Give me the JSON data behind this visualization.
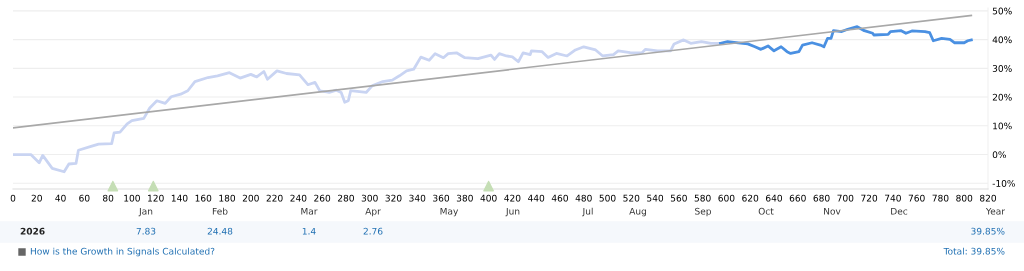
{
  "chart_data": {
    "type": "line",
    "xlim": [
      0,
      820
    ],
    "xticks": [
      0,
      20,
      40,
      60,
      80,
      100,
      120,
      140,
      160,
      180,
      200,
      220,
      240,
      260,
      280,
      300,
      320,
      340,
      360,
      380,
      400,
      420,
      440,
      460,
      480,
      500,
      520,
      540,
      560,
      580,
      600,
      620,
      640,
      660,
      680,
      700,
      720,
      740,
      760,
      780,
      800,
      820
    ],
    "ylim": [
      -12,
      51
    ],
    "yticks": [
      {
        "value": -10,
        "label": "-10%"
      },
      {
        "value": 0,
        "label": "0%"
      },
      {
        "value": 10,
        "label": "10%"
      },
      {
        "value": 20,
        "label": "20%"
      },
      {
        "value": 30,
        "label": "30%"
      },
      {
        "value": 40,
        "label": "40%"
      },
      {
        "value": 50,
        "label": "50%"
      }
    ],
    "grid": "y",
    "legend": false,
    "series": [
      {
        "color": "#c9d4f2",
        "x": [
          0,
          15,
          22,
          25,
          33,
          43,
          47,
          53,
          55,
          67,
          72,
          83,
          85,
          90,
          96,
          100,
          110,
          115,
          121,
          128,
          133,
          141,
          147,
          153,
          164,
          172,
          182,
          191,
          200,
          205,
          211,
          214,
          222,
          230,
          241,
          248,
          254,
          258,
          266,
          272,
          276,
          279,
          282,
          284,
          297,
          302,
          311,
          319,
          325,
          331,
          337,
          343,
          350,
          355,
          362,
          366,
          373,
          380,
          391,
          402,
          405,
          409,
          415,
          420,
          425,
          429,
          435,
          436,
          445,
          450,
          457,
          466,
          473,
          480,
          490,
          496,
          505,
          509,
          519,
          529,
          532,
          542,
          553,
          556,
          564,
          570,
          579,
          587,
          595
        ],
        "values": [
          0,
          0,
          -2.9,
          -0.3,
          -4.8,
          -6.0,
          -3.3,
          -3.1,
          1.5,
          3.0,
          3.6,
          3.8,
          7.5,
          7.8,
          10.7,
          11.8,
          12.6,
          16.2,
          18.7,
          17.8,
          20.1,
          21.0,
          22.2,
          25.4,
          26.8,
          27.4,
          28.5,
          26.6,
          27.9,
          27.0,
          28.9,
          26.2,
          29.1,
          28.2,
          27.7,
          24.3,
          25.1,
          22.2,
          21.6,
          22.4,
          21.6,
          18.2,
          18.7,
          22.2,
          21.6,
          23.9,
          25.4,
          25.9,
          27.4,
          29.1,
          29.7,
          33.9,
          32.8,
          35.1,
          33.7,
          35.1,
          35.4,
          33.7,
          33.4,
          34.6,
          33.1,
          35.1,
          34.3,
          34.0,
          32.3,
          35.4,
          34.8,
          36.1,
          35.8,
          33.8,
          35.2,
          34.3,
          36.4,
          37.5,
          36.4,
          34.3,
          34.8,
          36.1,
          35.5,
          35.4,
          36.6,
          36.1,
          36.1,
          38.5,
          39.9,
          38.7,
          39.3,
          38.7,
          38.7
        ]
      },
      {
        "color": "#4a90e2",
        "x": [
          595,
          601,
          610,
          618,
          624,
          629,
          635,
          640,
          646,
          651,
          654,
          661,
          664,
          672,
          679,
          682,
          685,
          688,
          690,
          697,
          702,
          710,
          716,
          723,
          724,
          736,
          738,
          747,
          751,
          756,
          767,
          771,
          774,
          781,
          788,
          792,
          800,
          803,
          806
        ],
        "values": [
          38.7,
          39.3,
          38.9,
          38.5,
          37.5,
          36.6,
          37.8,
          36.1,
          37.5,
          35.8,
          35.2,
          35.8,
          38.1,
          38.9,
          38.1,
          37.5,
          40.4,
          40.4,
          43.1,
          42.8,
          43.6,
          44.5,
          43.1,
          42.2,
          41.6,
          41.8,
          42.8,
          43.1,
          42.2,
          43.0,
          42.8,
          42.4,
          39.6,
          40.4,
          40.1,
          38.9,
          38.9,
          39.6,
          39.9
        ]
      },
      {
        "color": "#a8a8a8",
        "x": [
          0,
          806
        ],
        "values": [
          9.3,
          48.4
        ]
      },
      {
        "type": "scatter",
        "marker": "triangle",
        "color": "#c5deb5",
        "x": [
          84,
          118,
          400
        ],
        "values": [
          -11,
          -11,
          -11
        ]
      }
    ],
    "annotations": [
      "Jan",
      "Feb",
      "Mar",
      "Apr",
      "May",
      "Jun",
      "Jul",
      "Aug",
      "Sep",
      "Oct",
      "Nov",
      "Dec",
      "Year",
      "2026",
      "7.83",
      "24.48",
      "1.4",
      "2.76",
      "39.85%",
      "How is the Growth in Signals Calculated?",
      "Total: 39.85%"
    ]
  }
}
